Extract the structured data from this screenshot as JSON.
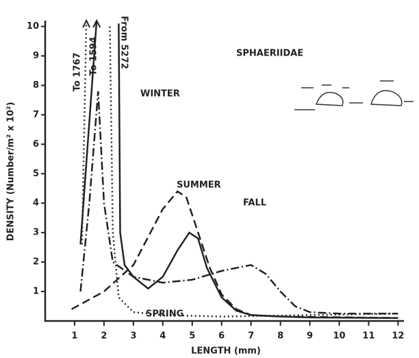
{
  "chart_data": {
    "type": "line",
    "title": "SPHAERIIDAE",
    "x_label": "LENGTH (mm)",
    "y_label": "DENSITY (Number/m² x 10²)",
    "xlim": [
      0,
      12.2
    ],
    "ylim": [
      0,
      10.2
    ],
    "xticks": [
      1,
      2,
      3,
      4,
      5,
      6,
      7,
      8,
      9,
      10,
      11,
      12
    ],
    "yticks": [
      1,
      2,
      3,
      4,
      5,
      6,
      7,
      8,
      9,
      10
    ],
    "series": [
      {
        "name": "WINTER",
        "color": "#222",
        "style": "solid",
        "x": [
          1.2,
          1.75,
          null,
          2.5,
          2.55,
          2.7,
          3,
          3.5,
          4,
          4.5,
          4.9,
          5.2,
          5.5,
          6,
          6.5,
          7,
          8,
          9,
          12
        ],
        "values": [
          2.6,
          10.2,
          null,
          10.1,
          3,
          1.9,
          1.5,
          1.1,
          1.5,
          2.4,
          3.0,
          2.8,
          1.8,
          0.8,
          0.35,
          0.2,
          0.15,
          0.12,
          0.1
        ]
      },
      {
        "name": "SUMMER",
        "color": "#222",
        "style": "dashed",
        "x": [
          0.9,
          2,
          3,
          4,
          4.5,
          4.8,
          5.2,
          5.6,
          6,
          6.5,
          7,
          8,
          12
        ],
        "values": [
          0.4,
          1.0,
          1.9,
          3.8,
          4.4,
          4.2,
          3.0,
          1.8,
          0.9,
          0.4,
          0.2,
          0.15,
          0.1
        ]
      },
      {
        "name": "FALL",
        "color": "#222",
        "style": "dashdot",
        "x": [
          1.2,
          1.5,
          1.8,
          2.0,
          2.3,
          3,
          4,
          5,
          6,
          7,
          7.5,
          8,
          8.5,
          9,
          10,
          12
        ],
        "values": [
          1,
          4,
          7.8,
          4,
          2,
          1.5,
          1.3,
          1.4,
          1.7,
          1.9,
          1.6,
          1.0,
          0.5,
          0.3,
          0.25,
          0.25
        ]
      },
      {
        "name": "SPRING",
        "color": "#222",
        "style": "dotted",
        "x": [
          1.25,
          1.4,
          null,
          2.2,
          2.3,
          2.5,
          3,
          4,
          6,
          9,
          12
        ],
        "values": [
          2.6,
          10.2,
          null,
          10,
          3,
          0.8,
          0.3,
          0.2,
          0.15,
          0.2,
          0.25
        ]
      }
    ],
    "annotations": [
      "To 1767",
      "To 1594",
      "From 5272"
    ]
  }
}
